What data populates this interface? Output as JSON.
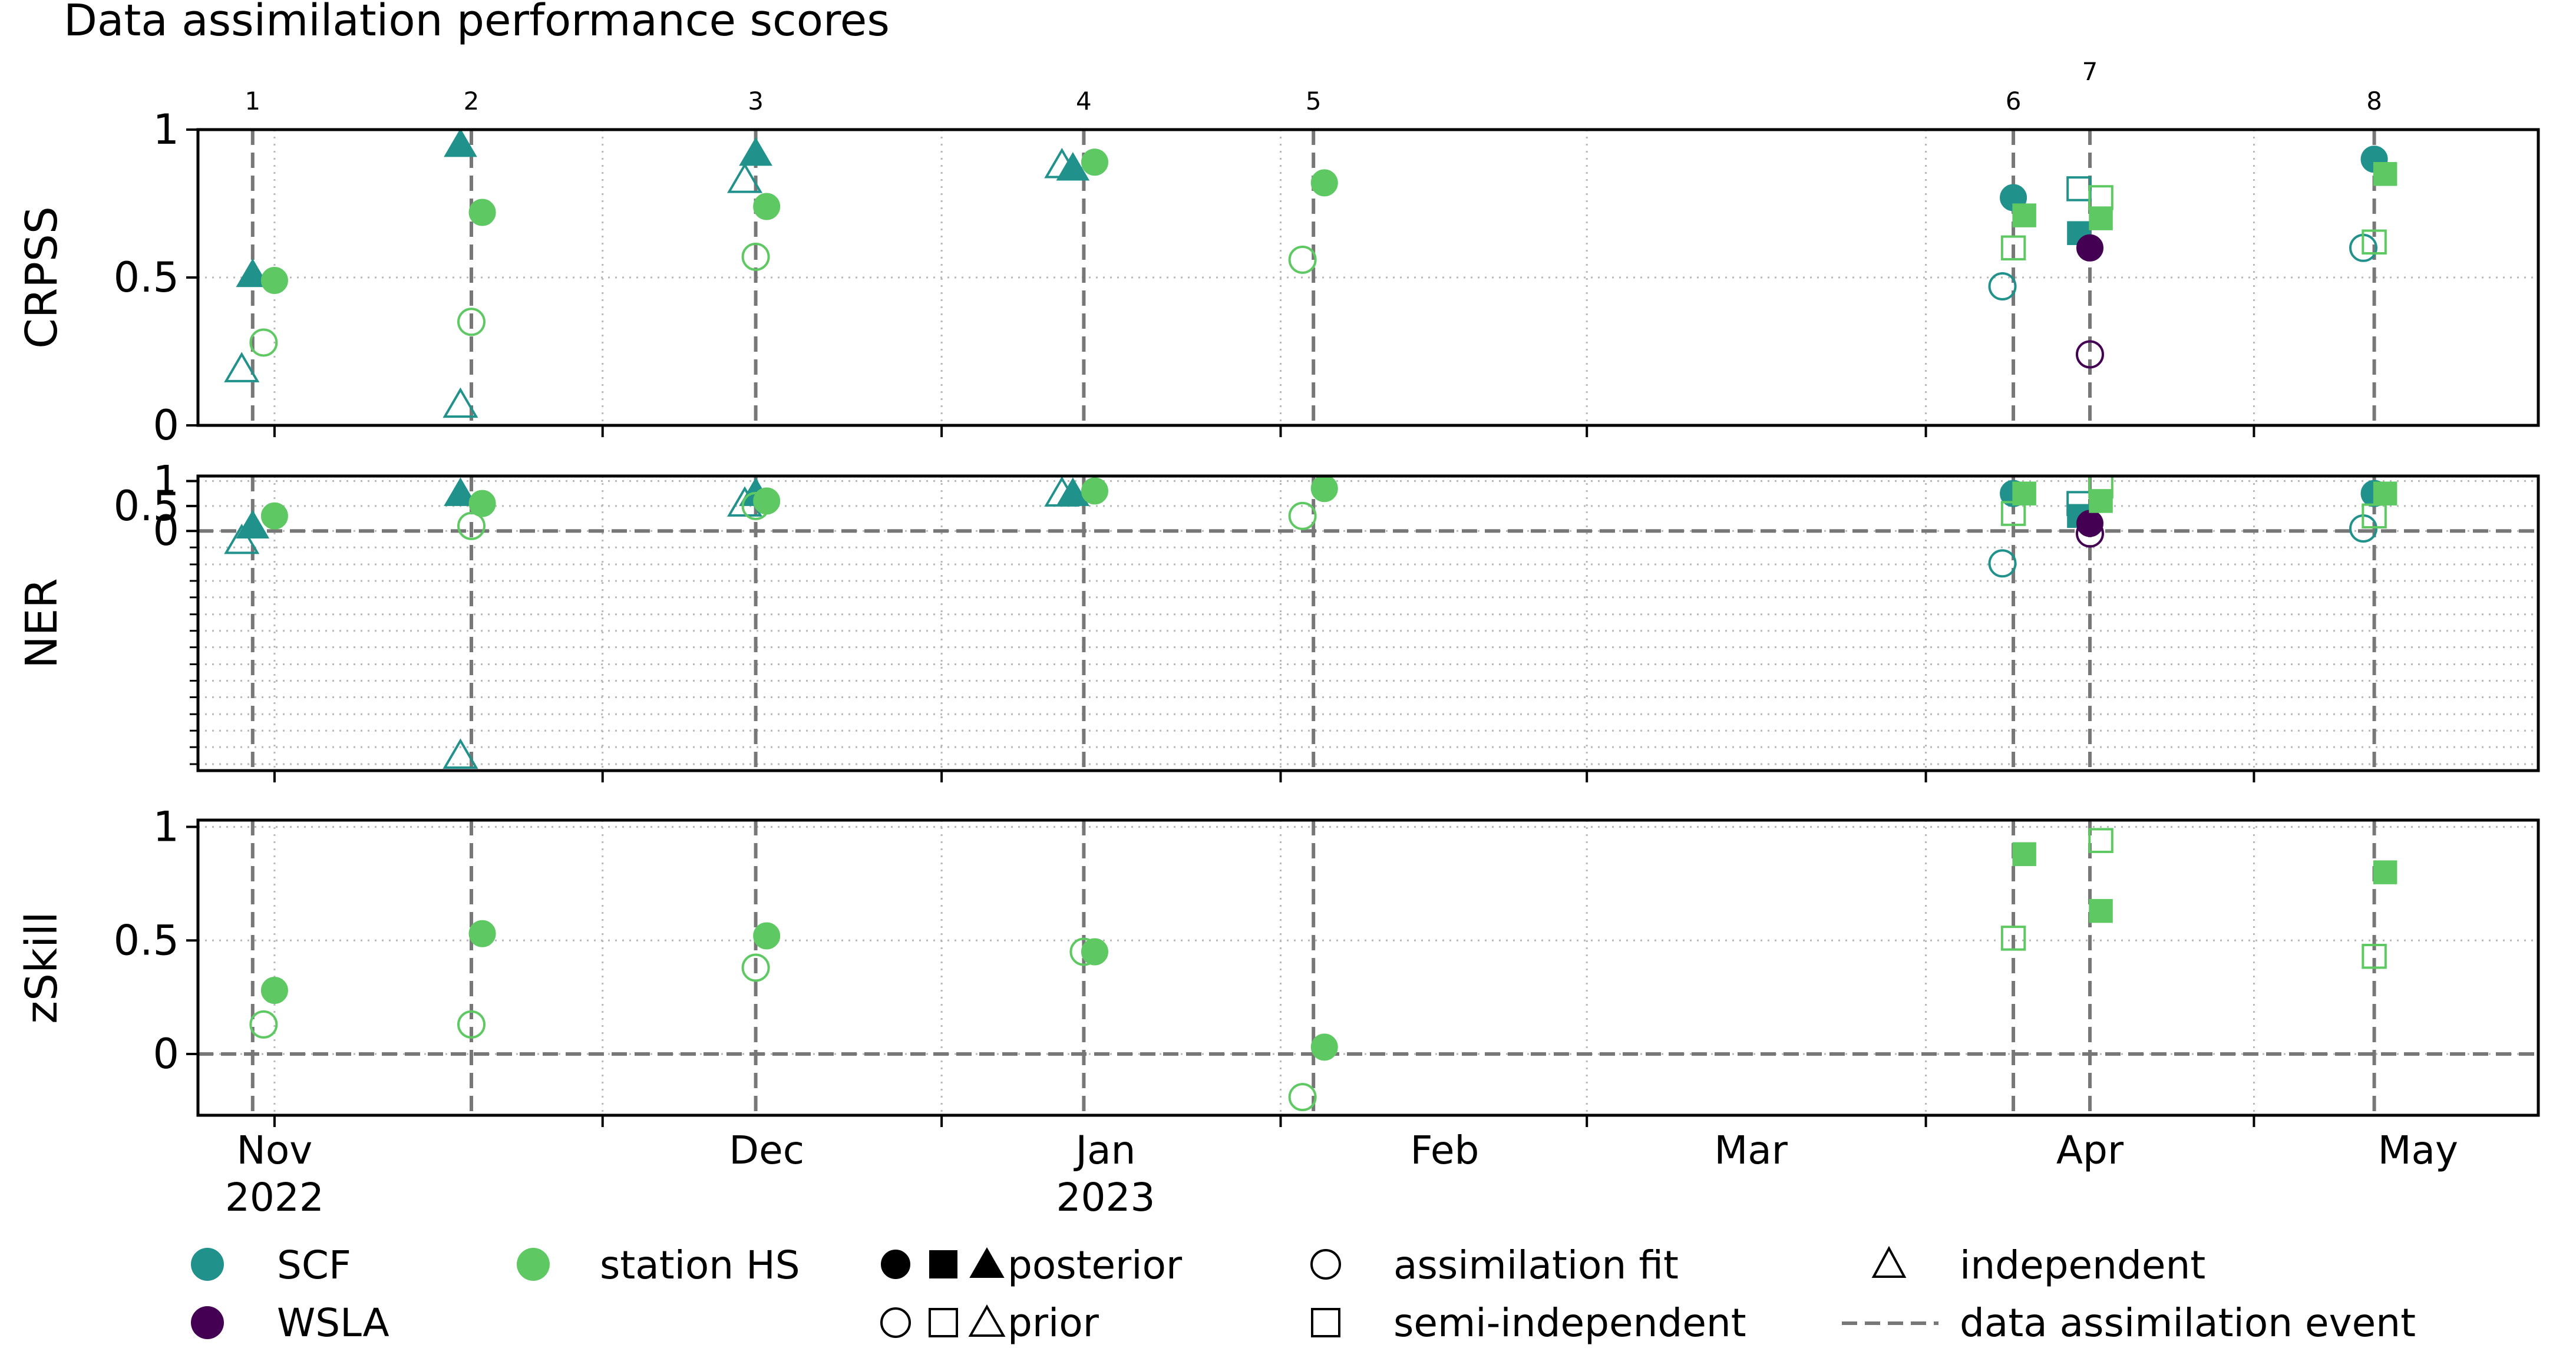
{
  "chart_data": {
    "type": "scatter",
    "title": "Data assimilation performance scores",
    "x_axis": {
      "type": "date",
      "range": [
        "2022-10-25",
        "2023-05-27"
      ],
      "month_ticks": [
        "2022-11-01",
        "2022-12-01",
        "2023-01-01",
        "2023-02-01",
        "2023-03-01",
        "2023-04-01",
        "2023-05-01"
      ],
      "tick_labels": [
        "Nov\n2022",
        "Dec",
        "Jan\n2023",
        "Feb",
        "Mar",
        "Apr",
        "May"
      ]
    },
    "events": [
      {
        "label": "1",
        "date": "2022-10-30"
      },
      {
        "label": "2",
        "date": "2022-11-19"
      },
      {
        "label": "3",
        "date": "2022-12-15"
      },
      {
        "label": "4",
        "date": "2023-01-14"
      },
      {
        "label": "5",
        "date": "2023-02-04"
      },
      {
        "label": "6",
        "date": "2023-04-09"
      },
      {
        "label": "7",
        "date": "2023-04-16"
      },
      {
        "label": "8",
        "date": "2023-05-12"
      }
    ],
    "colors": {
      "SCF": "#21918c",
      "station HS": "#5ec962",
      "WSLA": "#440154",
      "event_line": "#777777"
    },
    "panels": [
      {
        "ylabel": "CRPSS",
        "ylim": [
          0,
          1
        ],
        "yticks": [
          0,
          0.5,
          1
        ],
        "ytick_labels": [
          "0",
          "0.5",
          "1"
        ],
        "zero_line": false,
        "points": [
          {
            "var": "SCF",
            "marker": "triangle",
            "state": "posterior",
            "date": "2022-10-30",
            "value": 0.51
          },
          {
            "var": "SCF",
            "marker": "triangle",
            "state": "prior",
            "date": "2022-10-29",
            "value": 0.19
          },
          {
            "var": "station HS",
            "marker": "circle",
            "state": "posterior",
            "date": "2022-11-01",
            "value": 0.49
          },
          {
            "var": "station HS",
            "marker": "circle",
            "state": "prior",
            "date": "2022-10-31",
            "value": 0.28
          },
          {
            "var": "SCF",
            "marker": "triangle",
            "state": "posterior",
            "date": "2022-11-18",
            "value": 0.95
          },
          {
            "var": "SCF",
            "marker": "triangle",
            "state": "prior",
            "date": "2022-11-18",
            "value": 0.07
          },
          {
            "var": "station HS",
            "marker": "circle",
            "state": "posterior",
            "date": "2022-11-20",
            "value": 0.72
          },
          {
            "var": "station HS",
            "marker": "circle",
            "state": "prior",
            "date": "2022-11-19",
            "value": 0.35
          },
          {
            "var": "SCF",
            "marker": "triangle",
            "state": "posterior",
            "date": "2022-12-15",
            "value": 0.92
          },
          {
            "var": "SCF",
            "marker": "triangle",
            "state": "prior",
            "date": "2022-12-14",
            "value": 0.83
          },
          {
            "var": "station HS",
            "marker": "circle",
            "state": "posterior",
            "date": "2022-12-16",
            "value": 0.74
          },
          {
            "var": "station HS",
            "marker": "circle",
            "state": "prior",
            "date": "2022-12-15",
            "value": 0.57
          },
          {
            "var": "SCF",
            "marker": "triangle",
            "state": "posterior",
            "date": "2023-01-13",
            "value": 0.87
          },
          {
            "var": "SCF",
            "marker": "triangle",
            "state": "prior",
            "date": "2023-01-12",
            "value": 0.88
          },
          {
            "var": "station HS",
            "marker": "circle",
            "state": "posterior",
            "date": "2023-01-15",
            "value": 0.89
          },
          {
            "var": "station HS",
            "marker": "circle",
            "state": "prior",
            "date": "2023-02-03",
            "value": 0.56
          },
          {
            "var": "station HS",
            "marker": "circle",
            "state": "posterior",
            "date": "2023-02-05",
            "value": 0.82
          },
          {
            "var": "SCF",
            "marker": "circle",
            "state": "posterior",
            "date": "2023-04-09",
            "value": 0.77
          },
          {
            "var": "SCF",
            "marker": "circle",
            "state": "prior",
            "date": "2023-04-08",
            "value": 0.47
          },
          {
            "var": "station HS",
            "marker": "square",
            "state": "posterior",
            "date": "2023-04-10",
            "value": 0.71
          },
          {
            "var": "station HS",
            "marker": "square",
            "state": "prior",
            "date": "2023-04-09",
            "value": 0.6
          },
          {
            "var": "SCF",
            "marker": "square",
            "state": "posterior",
            "date": "2023-04-15",
            "value": 0.65
          },
          {
            "var": "SCF",
            "marker": "square",
            "state": "prior",
            "date": "2023-04-15",
            "value": 0.8
          },
          {
            "var": "WSLA",
            "marker": "circle",
            "state": "posterior",
            "date": "2023-04-16",
            "value": 0.6
          },
          {
            "var": "WSLA",
            "marker": "circle",
            "state": "prior",
            "date": "2023-04-16",
            "value": 0.24
          },
          {
            "var": "station HS",
            "marker": "square",
            "state": "posterior",
            "date": "2023-04-17",
            "value": 0.7
          },
          {
            "var": "station HS",
            "marker": "square",
            "state": "prior",
            "date": "2023-04-17",
            "value": 0.77
          },
          {
            "var": "SCF",
            "marker": "circle",
            "state": "posterior",
            "date": "2023-05-12",
            "value": 0.9
          },
          {
            "var": "SCF",
            "marker": "circle",
            "state": "prior",
            "date": "2023-05-11",
            "value": 0.6
          },
          {
            "var": "station HS",
            "marker": "square",
            "state": "posterior",
            "date": "2023-05-13",
            "value": 0.85
          },
          {
            "var": "station HS",
            "marker": "square",
            "state": "prior",
            "date": "2023-05-12",
            "value": 0.62
          }
        ]
      },
      {
        "ylabel": "NER",
        "ylim": [
          -4.8,
          1.1
        ],
        "yticks": [
          0,
          0.5,
          1
        ],
        "ytick_labels": [
          "0",
          "0.5",
          "1"
        ],
        "minor_gridlines": [
          -0.33,
          -0.67,
          -1,
          -1.33,
          -1.67,
          -2,
          -2.33,
          -2.67,
          -3,
          -3.33,
          -3.67,
          -4,
          -4.33,
          -4.67
        ],
        "zero_line": true,
        "points": [
          {
            "var": "SCF",
            "marker": "triangle",
            "state": "posterior",
            "date": "2022-10-30",
            "value": 0.1
          },
          {
            "var": "SCF",
            "marker": "triangle",
            "state": "prior",
            "date": "2022-10-29",
            "value": -0.2
          },
          {
            "var": "station HS",
            "marker": "circle",
            "state": "posterior",
            "date": "2022-11-01",
            "value": 0.3
          },
          {
            "var": "SCF",
            "marker": "triangle",
            "state": "posterior",
            "date": "2022-11-18",
            "value": 0.75
          },
          {
            "var": "SCF",
            "marker": "triangle",
            "state": "prior",
            "date": "2022-11-18",
            "value": -4.5
          },
          {
            "var": "station HS",
            "marker": "circle",
            "state": "posterior",
            "date": "2022-11-20",
            "value": 0.55
          },
          {
            "var": "station HS",
            "marker": "circle",
            "state": "prior",
            "date": "2022-11-19",
            "value": 0.1
          },
          {
            "var": "SCF",
            "marker": "triangle",
            "state": "posterior",
            "date": "2022-12-15",
            "value": 0.75
          },
          {
            "var": "SCF",
            "marker": "triangle",
            "state": "prior",
            "date": "2022-12-14",
            "value": 0.55
          },
          {
            "var": "station HS",
            "marker": "circle",
            "state": "posterior",
            "date": "2022-12-16",
            "value": 0.6
          },
          {
            "var": "station HS",
            "marker": "circle",
            "state": "prior",
            "date": "2022-12-15",
            "value": 0.5
          },
          {
            "var": "SCF",
            "marker": "triangle",
            "state": "posterior",
            "date": "2023-01-13",
            "value": 0.75
          },
          {
            "var": "SCF",
            "marker": "triangle",
            "state": "prior",
            "date": "2023-01-12",
            "value": 0.75
          },
          {
            "var": "station HS",
            "marker": "circle",
            "state": "posterior",
            "date": "2023-01-15",
            "value": 0.8
          },
          {
            "var": "station HS",
            "marker": "circle",
            "state": "prior",
            "date": "2023-02-03",
            "value": 0.3
          },
          {
            "var": "station HS",
            "marker": "circle",
            "state": "posterior",
            "date": "2023-02-05",
            "value": 0.85
          },
          {
            "var": "SCF",
            "marker": "circle",
            "state": "posterior",
            "date": "2023-04-09",
            "value": 0.75
          },
          {
            "var": "SCF",
            "marker": "circle",
            "state": "prior",
            "date": "2023-04-08",
            "value": -0.65
          },
          {
            "var": "station HS",
            "marker": "square",
            "state": "posterior",
            "date": "2023-04-10",
            "value": 0.75
          },
          {
            "var": "station HS",
            "marker": "square",
            "state": "prior",
            "date": "2023-04-09",
            "value": 0.35
          },
          {
            "var": "SCF",
            "marker": "square",
            "state": "posterior",
            "date": "2023-04-15",
            "value": 0.3
          },
          {
            "var": "SCF",
            "marker": "square",
            "state": "prior",
            "date": "2023-04-15",
            "value": 0.55
          },
          {
            "var": "WSLA",
            "marker": "circle",
            "state": "posterior",
            "date": "2023-04-16",
            "value": 0.15
          },
          {
            "var": "WSLA",
            "marker": "circle",
            "state": "prior",
            "date": "2023-04-16",
            "value": -0.05
          },
          {
            "var": "station HS",
            "marker": "square",
            "state": "posterior",
            "date": "2023-04-17",
            "value": 0.6
          },
          {
            "var": "station HS",
            "marker": "square",
            "state": "prior",
            "date": "2023-04-17",
            "value": 0.9
          },
          {
            "var": "SCF",
            "marker": "circle",
            "state": "posterior",
            "date": "2023-05-12",
            "value": 0.75
          },
          {
            "var": "SCF",
            "marker": "circle",
            "state": "prior",
            "date": "2023-05-11",
            "value": 0.05
          },
          {
            "var": "station HS",
            "marker": "square",
            "state": "posterior",
            "date": "2023-05-13",
            "value": 0.75
          },
          {
            "var": "station HS",
            "marker": "square",
            "state": "prior",
            "date": "2023-05-12",
            "value": 0.3
          }
        ]
      },
      {
        "ylabel": "zSkill",
        "ylim": [
          -0.27,
          1.03
        ],
        "yticks": [
          0,
          0.5,
          1
        ],
        "ytick_labels": [
          "0",
          "0.5",
          "1"
        ],
        "zero_line": true,
        "points": [
          {
            "var": "station HS",
            "marker": "circle",
            "state": "posterior",
            "date": "2022-11-01",
            "value": 0.28
          },
          {
            "var": "station HS",
            "marker": "circle",
            "state": "prior",
            "date": "2022-10-31",
            "value": 0.13
          },
          {
            "var": "station HS",
            "marker": "circle",
            "state": "posterior",
            "date": "2022-11-20",
            "value": 0.53
          },
          {
            "var": "station HS",
            "marker": "circle",
            "state": "prior",
            "date": "2022-11-19",
            "value": 0.13
          },
          {
            "var": "station HS",
            "marker": "circle",
            "state": "posterior",
            "date": "2022-12-16",
            "value": 0.52
          },
          {
            "var": "station HS",
            "marker": "circle",
            "state": "prior",
            "date": "2022-12-15",
            "value": 0.38
          },
          {
            "var": "station HS",
            "marker": "circle",
            "state": "posterior",
            "date": "2023-01-15",
            "value": 0.45
          },
          {
            "var": "station HS",
            "marker": "circle",
            "state": "prior",
            "date": "2023-01-14",
            "value": 0.45
          },
          {
            "var": "station HS",
            "marker": "circle",
            "state": "posterior",
            "date": "2023-02-05",
            "value": 0.03
          },
          {
            "var": "station HS",
            "marker": "circle",
            "state": "prior",
            "date": "2023-02-03",
            "value": -0.19
          },
          {
            "var": "station HS",
            "marker": "square",
            "state": "posterior",
            "date": "2023-04-10",
            "value": 0.88
          },
          {
            "var": "station HS",
            "marker": "square",
            "state": "prior",
            "date": "2023-04-09",
            "value": 0.51
          },
          {
            "var": "station HS",
            "marker": "square",
            "state": "posterior",
            "date": "2023-04-17",
            "value": 0.63
          },
          {
            "var": "station HS",
            "marker": "square",
            "state": "prior",
            "date": "2023-04-17",
            "value": 0.94
          },
          {
            "var": "station HS",
            "marker": "square",
            "state": "posterior",
            "date": "2023-05-13",
            "value": 0.8
          },
          {
            "var": "station HS",
            "marker": "square",
            "state": "prior",
            "date": "2023-05-12",
            "value": 0.43
          }
        ]
      }
    ],
    "legend": {
      "placement": "bottom",
      "entries": [
        {
          "label": "SCF",
          "kind": "color",
          "key": "SCF"
        },
        {
          "label": "WSLA",
          "kind": "color",
          "key": "WSLA"
        },
        {
          "label": "station HS",
          "kind": "color",
          "key": "station HS"
        },
        {
          "label": "posterior",
          "kind": "filled-markers"
        },
        {
          "label": "prior",
          "kind": "open-markers"
        },
        {
          "label": "assimilation fit",
          "kind": "open-circle"
        },
        {
          "label": "semi-independent",
          "kind": "open-square"
        },
        {
          "label": "independent",
          "kind": "open-triangle"
        },
        {
          "label": "data assimilation event",
          "kind": "dashed-line"
        }
      ]
    }
  }
}
